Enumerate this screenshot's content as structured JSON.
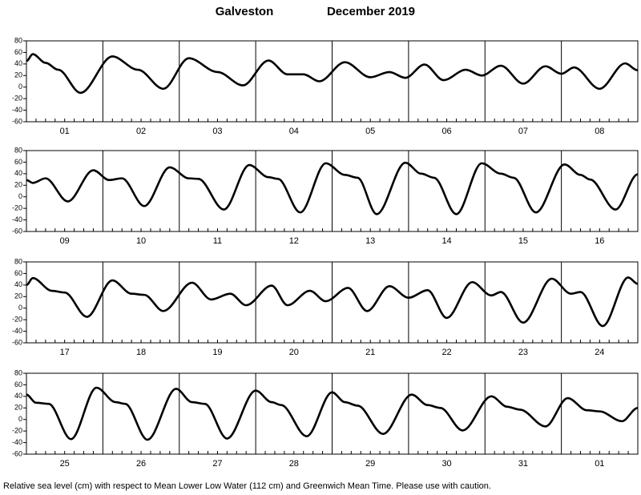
{
  "header": {
    "station": "Galveston",
    "period": "December 2019"
  },
  "footnote": "Relative sea level (cm) with respect to Mean Lower Low Water (112 cm) and Greenwich Mean Time. Please use with caution.",
  "chart_data": [
    {
      "type": "line",
      "color": "#000000",
      "categories": [
        "01",
        "02",
        "03",
        "04",
        "05",
        "06",
        "07",
        "08"
      ],
      "xlim": [
        0,
        192
      ],
      "xticks": [
        0,
        24,
        48,
        72,
        96,
        120,
        144,
        168,
        192
      ],
      "ylim": [
        -60,
        80
      ],
      "yticks": [
        -60,
        -40,
        -20,
        0,
        20,
        40,
        60,
        80
      ],
      "x": [
        0,
        2,
        6,
        10,
        17,
        27,
        35,
        43,
        51,
        60,
        68,
        76,
        82,
        87,
        92,
        100,
        108,
        114,
        119,
        125,
        131,
        138,
        143,
        149,
        156,
        163,
        168,
        172,
        180,
        188,
        192
      ],
      "values": [
        45,
        57,
        42,
        30,
        -10,
        53,
        30,
        -3,
        50,
        26,
        3,
        46,
        22,
        22,
        10,
        43,
        17,
        26,
        16,
        39,
        12,
        30,
        20,
        37,
        6,
        36,
        23,
        34,
        -3,
        41,
        29
      ]
    },
    {
      "type": "line",
      "color": "#000000",
      "categories": [
        "09",
        "10",
        "11",
        "12",
        "13",
        "14",
        "15",
        "16"
      ],
      "xlim": [
        0,
        192
      ],
      "xticks": [
        0,
        24,
        48,
        72,
        96,
        120,
        144,
        168,
        192
      ],
      "ylim": [
        -60,
        80
      ],
      "yticks": [
        -60,
        -40,
        -20,
        0,
        20,
        40,
        60,
        80
      ],
      "x": [
        0,
        2,
        6,
        13,
        21,
        26,
        30,
        37,
        45,
        51,
        54,
        62,
        70,
        76,
        79,
        86,
        94,
        100,
        104,
        110,
        119,
        124,
        128,
        135,
        143,
        149,
        153,
        160,
        169,
        174,
        177,
        185,
        192
      ],
      "values": [
        29,
        24,
        32,
        -8,
        46,
        29,
        32,
        -16,
        51,
        32,
        31,
        -22,
        55,
        34,
        31,
        -27,
        58,
        38,
        33,
        -30,
        59,
        40,
        33,
        -30,
        58,
        40,
        33,
        -27,
        56,
        38,
        30,
        -22,
        39
      ]
    },
    {
      "type": "line",
      "color": "#000000",
      "categories": [
        "17",
        "18",
        "19",
        "20",
        "21",
        "22",
        "23",
        "24"
      ],
      "xlim": [
        0,
        192
      ],
      "xticks": [
        0,
        24,
        48,
        72,
        96,
        120,
        144,
        168,
        192
      ],
      "ylim": [
        -60,
        80
      ],
      "yticks": [
        -60,
        -40,
        -20,
        0,
        20,
        40,
        60,
        80
      ],
      "x": [
        0,
        2,
        8,
        12,
        19,
        27,
        33,
        37,
        43,
        52,
        58,
        64,
        69,
        77,
        82,
        89,
        94,
        101,
        107,
        114,
        120,
        126,
        132,
        140,
        146,
        149,
        156,
        165,
        171,
        174,
        181,
        189,
        192
      ],
      "values": [
        40,
        52,
        30,
        27,
        -15,
        48,
        25,
        23,
        -5,
        44,
        15,
        25,
        5,
        39,
        5,
        30,
        12,
        35,
        -5,
        38,
        18,
        31,
        -17,
        45,
        22,
        28,
        -25,
        51,
        25,
        28,
        -31,
        53,
        42
      ]
    },
    {
      "type": "line",
      "color": "#000000",
      "categories": [
        "25",
        "26",
        "27",
        "28",
        "29",
        "30",
        "31",
        "01"
      ],
      "xlim": [
        0,
        192
      ],
      "xticks": [
        0,
        24,
        48,
        72,
        96,
        120,
        144,
        168,
        192
      ],
      "ylim": [
        -60,
        80
      ],
      "yticks": [
        -60,
        -40,
        -20,
        0,
        20,
        40,
        60,
        80
      ],
      "x": [
        0,
        3,
        7,
        14,
        22,
        28,
        31,
        38,
        47,
        52,
        56,
        63,
        72,
        77,
        80,
        88,
        96,
        100,
        104,
        112,
        121,
        126,
        130,
        137,
        146,
        151,
        155,
        163,
        170,
        176,
        180,
        187,
        192
      ],
      "values": [
        43,
        29,
        27,
        -34,
        55,
        30,
        27,
        -35,
        53,
        30,
        27,
        -33,
        50,
        30,
        25,
        -29,
        47,
        30,
        24,
        -25,
        43,
        25,
        20,
        -19,
        40,
        22,
        17,
        -12,
        37,
        16,
        14,
        -3,
        20
      ]
    }
  ]
}
